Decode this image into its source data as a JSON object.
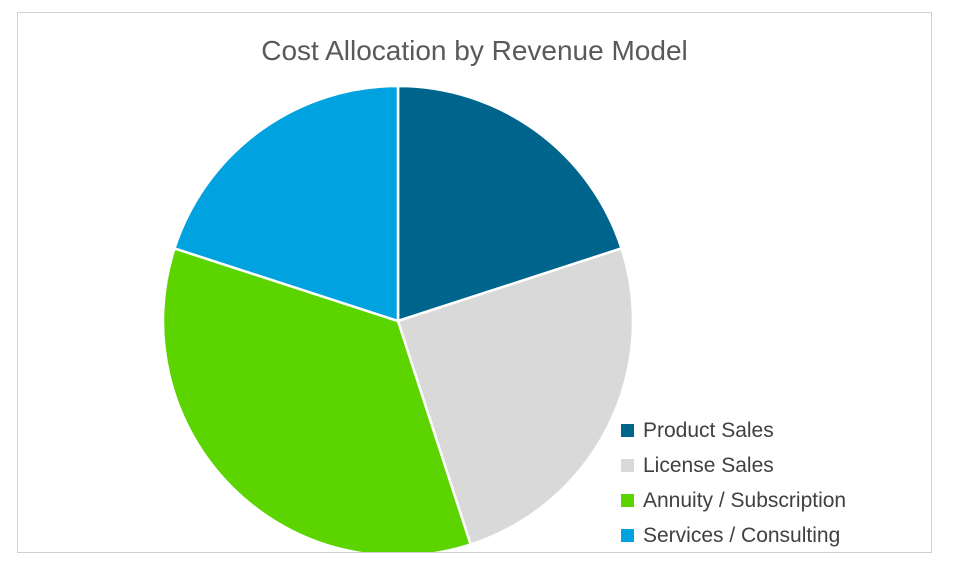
{
  "chart_data": {
    "type": "pie",
    "title": "Cost Allocation by Revenue Model",
    "categories": [
      "Product Sales",
      "License Sales",
      "Annuity / Subscription",
      "Services / Consulting"
    ],
    "values": [
      20,
      25,
      35,
      20
    ],
    "colors": [
      "#00658c",
      "#d9d9d9",
      "#5bd400",
      "#00a2df"
    ],
    "legend_position": "bottom-right"
  }
}
